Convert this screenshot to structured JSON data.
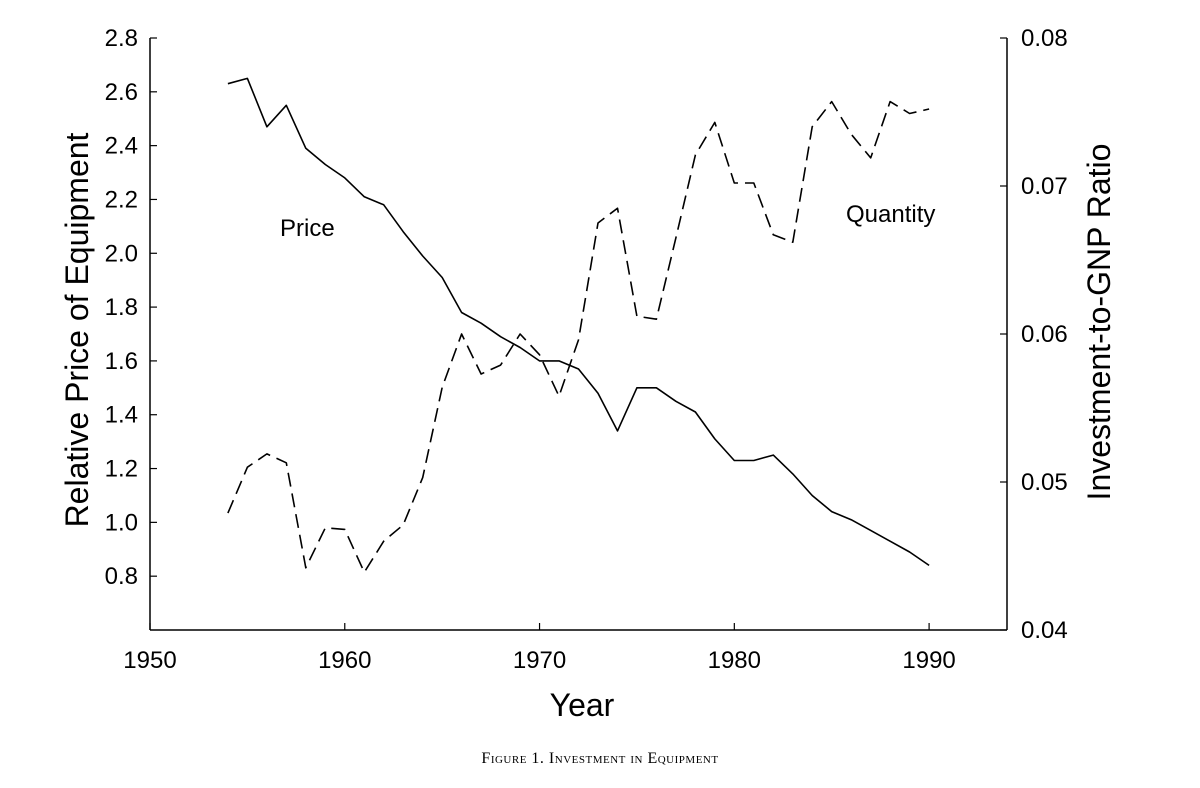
{
  "chart_data": {
    "type": "line",
    "caption": "Figure 1. Investment in Equipment",
    "xlabel": "Year",
    "ylabel_left": "Relative Price of Equipment",
    "ylabel_right": "Investment-to-GNP Ratio",
    "xlim": [
      1950,
      1994
    ],
    "ylim_left": [
      0.6,
      2.8
    ],
    "ylim_right": [
      0.04,
      0.08
    ],
    "x_ticks": [
      1950,
      1960,
      1970,
      1980,
      1990
    ],
    "y_left_ticks": [
      "0.8",
      "1.0",
      "1.2",
      "1.4",
      "1.6",
      "1.8",
      "2.0",
      "2.2",
      "2.4",
      "2.6",
      "2.8"
    ],
    "y_right_ticks": [
      "0.04",
      "0.05",
      "0.06",
      "0.07",
      "0.08"
    ],
    "grid": false,
    "legend": "none",
    "series": [
      {
        "name": "Price",
        "axis": "left",
        "style": "solid",
        "color": "#000000",
        "x": [
          1954,
          1955,
          1956,
          1957,
          1958,
          1959,
          1960,
          1961,
          1962,
          1963,
          1964,
          1965,
          1966,
          1967,
          1968,
          1969,
          1970,
          1971,
          1972,
          1973,
          1974,
          1975,
          1976,
          1977,
          1978,
          1979,
          1980,
          1981,
          1982,
          1983,
          1984,
          1985,
          1986,
          1987,
          1988,
          1989,
          1990
        ],
        "values": [
          2.63,
          2.65,
          2.47,
          2.55,
          2.39,
          2.33,
          2.28,
          2.21,
          2.18,
          2.08,
          1.99,
          1.91,
          1.78,
          1.74,
          1.69,
          1.65,
          1.6,
          1.6,
          1.57,
          1.48,
          1.34,
          1.5,
          1.5,
          1.45,
          1.41,
          1.31,
          1.23,
          1.23,
          1.25,
          1.18,
          1.1,
          1.04,
          1.01,
          0.97,
          0.93,
          0.89,
          0.84
        ]
      },
      {
        "name": "Quantity",
        "axis": "right",
        "style": "dashed",
        "color": "#000000",
        "x": [
          1954,
          1955,
          1956,
          1957,
          1958,
          1959,
          1960,
          1961,
          1962,
          1963,
          1964,
          1965,
          1966,
          1967,
          1968,
          1969,
          1970,
          1971,
          1972,
          1973,
          1974,
          1975,
          1976,
          1977,
          1978,
          1979,
          1980,
          1981,
          1982,
          1983,
          1984,
          1985,
          1986,
          1987,
          1988,
          1989,
          1990
        ],
        "values": [
          0.0479,
          0.051,
          0.0519,
          0.0513,
          0.0442,
          0.0469,
          0.0468,
          0.0439,
          0.046,
          0.0471,
          0.0503,
          0.0564,
          0.06,
          0.0573,
          0.0579,
          0.06,
          0.0586,
          0.0558,
          0.0596,
          0.0675,
          0.0685,
          0.0612,
          0.061,
          0.0665,
          0.0721,
          0.0743,
          0.0702,
          0.0702,
          0.0667,
          0.0662,
          0.074,
          0.0757,
          0.0735,
          0.0719,
          0.0757,
          0.0749,
          0.0752
        ]
      }
    ]
  }
}
